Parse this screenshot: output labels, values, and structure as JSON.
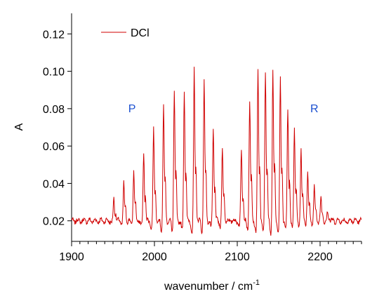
{
  "chart_data": {
    "type": "line",
    "xlabel": "wavenumber / cm",
    "xlabel_sup": "-1",
    "ylabel": "A",
    "xlim": [
      1900,
      2250
    ],
    "ylim": [
      0.009,
      0.131
    ],
    "x_ticks": [
      1900,
      2000,
      2100,
      2200
    ],
    "x_tick_labels": [
      "1900",
      "2000",
      "2100",
      "2200"
    ],
    "y_ticks": [
      0.02,
      0.04,
      0.06,
      0.08,
      0.1,
      0.12
    ],
    "y_tick_labels": [
      "0.02",
      "0.04",
      "0.06",
      "0.08",
      "0.10",
      "0.12"
    ],
    "legend": {
      "position": "top-left"
    },
    "series": [
      {
        "name": "DCl",
        "color": "#d00000",
        "baseline": 0.02,
        "peaks": [
          {
            "x": 1951,
            "y": 0.032
          },
          {
            "x": 1963,
            "y": 0.04
          },
          {
            "x": 1975,
            "y": 0.047
          },
          {
            "x": 1987,
            "y": 0.057
          },
          {
            "x": 1999,
            "y": 0.069
          },
          {
            "x": 2011,
            "y": 0.082
          },
          {
            "x": 2024,
            "y": 0.09
          },
          {
            "x": 2036,
            "y": 0.091
          },
          {
            "x": 2048,
            "y": 0.101
          },
          {
            "x": 2060,
            "y": 0.096
          },
          {
            "x": 2071,
            "y": 0.07
          },
          {
            "x": 2082,
            "y": 0.059
          },
          {
            "x": 2105,
            "y": 0.059
          },
          {
            "x": 2115,
            "y": 0.085
          },
          {
            "x": 2125,
            "y": 0.101
          },
          {
            "x": 2134,
            "y": 0.101
          },
          {
            "x": 2143,
            "y": 0.102
          },
          {
            "x": 2152,
            "y": 0.097
          },
          {
            "x": 2161,
            "y": 0.081
          },
          {
            "x": 2169,
            "y": 0.07
          },
          {
            "x": 2177,
            "y": 0.06
          },
          {
            "x": 2185,
            "y": 0.046
          },
          {
            "x": 2193,
            "y": 0.038
          },
          {
            "x": 2201,
            "y": 0.032
          },
          {
            "x": 2209,
            "y": 0.025
          }
        ]
      }
    ],
    "annotations": [
      {
        "text": "P",
        "x": 1973,
        "y": 0.078,
        "color": "#1a4fd0"
      },
      {
        "text": "R",
        "x": 2193,
        "y": 0.078,
        "color": "#1a4fd0"
      }
    ]
  }
}
